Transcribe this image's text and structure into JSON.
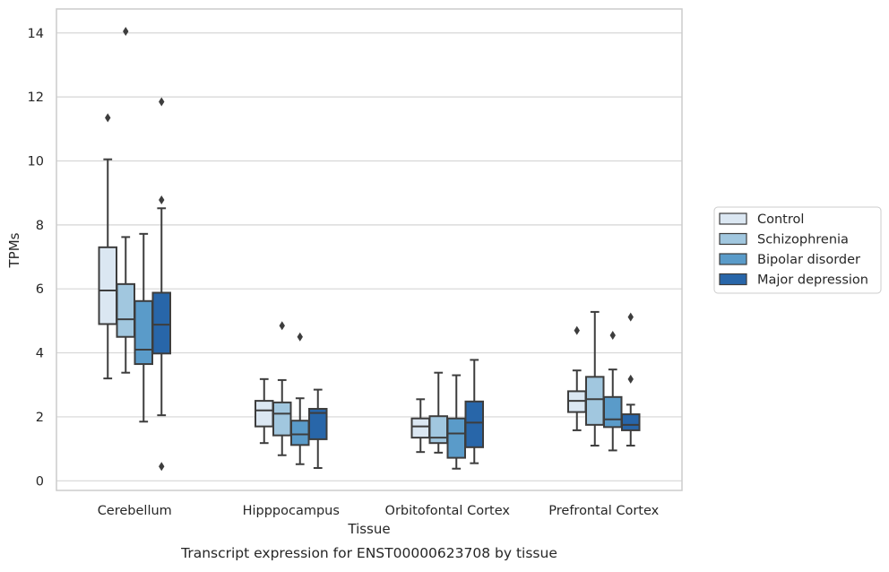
{
  "chart_data": {
    "type": "box",
    "title": "",
    "caption": "Transcript expression for ENST00000623708 by tissue",
    "xlabel": "Tissue",
    "ylabel": "TPMs",
    "ylim": [
      -0.3,
      14.75
    ],
    "yticks": [
      0,
      2,
      4,
      6,
      8,
      10,
      12,
      14
    ],
    "grid": "horizontal",
    "legend_position": "right",
    "categories": [
      "Cerebellum",
      "Hipppocampus",
      "Orbitofontal Cortex",
      "Prefrontal Cortex"
    ],
    "series": [
      {
        "name": "Control",
        "color": "#dbe7f2",
        "boxes": [
          {
            "whisker_low": 3.2,
            "q1": 4.9,
            "median": 5.95,
            "q3": 7.3,
            "whisker_high": 10.05,
            "outliers": [
              11.35
            ]
          },
          {
            "whisker_low": 1.18,
            "q1": 1.7,
            "median": 2.2,
            "q3": 2.5,
            "whisker_high": 3.18,
            "outliers": []
          },
          {
            "whisker_low": 0.9,
            "q1": 1.35,
            "median": 1.7,
            "q3": 1.95,
            "whisker_high": 2.55,
            "outliers": []
          },
          {
            "whisker_low": 1.58,
            "q1": 2.15,
            "median": 2.5,
            "q3": 2.8,
            "whisker_high": 3.45,
            "outliers": [
              4.7
            ]
          }
        ]
      },
      {
        "name": "Schizophrenia",
        "color": "#a1c7df",
        "boxes": [
          {
            "whisker_low": 3.38,
            "q1": 4.5,
            "median": 5.05,
            "q3": 6.15,
            "whisker_high": 7.62,
            "outliers": [
              14.05
            ]
          },
          {
            "whisker_low": 0.8,
            "q1": 1.42,
            "median": 2.1,
            "q3": 2.45,
            "whisker_high": 3.15,
            "outliers": [
              4.85
            ]
          },
          {
            "whisker_low": 0.88,
            "q1": 1.18,
            "median": 1.35,
            "q3": 2.02,
            "whisker_high": 3.38,
            "outliers": []
          },
          {
            "whisker_low": 1.1,
            "q1": 1.75,
            "median": 2.55,
            "q3": 3.25,
            "whisker_high": 5.28,
            "outliers": []
          }
        ]
      },
      {
        "name": "Bipolar disorder",
        "color": "#5a9bc9",
        "boxes": [
          {
            "whisker_low": 1.85,
            "q1": 3.65,
            "median": 4.1,
            "q3": 5.62,
            "whisker_high": 7.72,
            "outliers": []
          },
          {
            "whisker_low": 0.52,
            "q1": 1.12,
            "median": 1.45,
            "q3": 1.88,
            "whisker_high": 2.58,
            "outliers": [
              4.5
            ]
          },
          {
            "whisker_low": 0.38,
            "q1": 0.72,
            "median": 1.48,
            "q3": 1.95,
            "whisker_high": 3.3,
            "outliers": []
          },
          {
            "whisker_low": 0.95,
            "q1": 1.68,
            "median": 1.92,
            "q3": 2.62,
            "whisker_high": 3.48,
            "outliers": [
              4.55
            ]
          }
        ]
      },
      {
        "name": "Major depression",
        "color": "#2866a9",
        "boxes": [
          {
            "whisker_low": 2.05,
            "q1": 3.98,
            "median": 4.88,
            "q3": 5.88,
            "whisker_high": 8.52,
            "outliers": [
              11.85,
              8.78,
              0.45
            ]
          },
          {
            "whisker_low": 0.4,
            "q1": 1.3,
            "median": 2.12,
            "q3": 2.25,
            "whisker_high": 2.85,
            "outliers": []
          },
          {
            "whisker_low": 0.55,
            "q1": 1.05,
            "median": 1.82,
            "q3": 2.48,
            "whisker_high": 3.78,
            "outliers": []
          },
          {
            "whisker_low": 1.1,
            "q1": 1.58,
            "median": 1.75,
            "q3": 2.08,
            "whisker_high": 2.38,
            "outliers": [
              5.12,
              3.18
            ]
          }
        ]
      }
    ]
  }
}
